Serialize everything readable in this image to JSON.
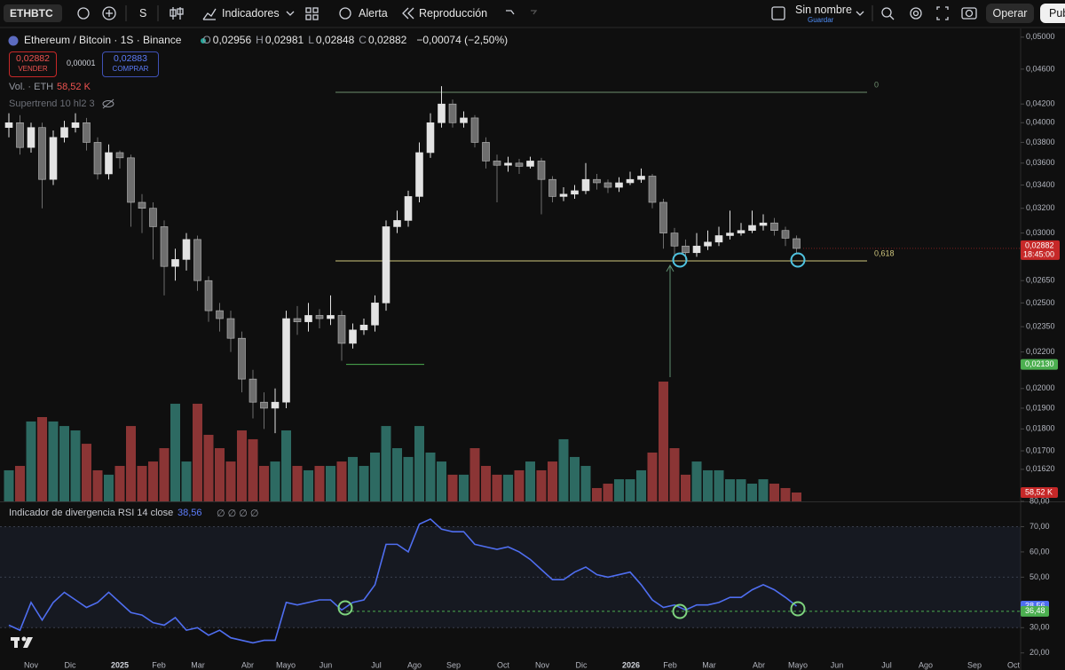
{
  "toolbar": {
    "symbol": "ETHBTC",
    "interval": "S",
    "indicators": "Indicadores",
    "alert": "Alerta",
    "replay": "Reproducción",
    "layout_name": "Sin nombre",
    "save": "Guardar",
    "trade": "Operar",
    "publish": "Pub"
  },
  "chart_data": [
    {
      "type": "candlestick",
      "title": "Ethereum / Bitcoin · 1S · Binance",
      "legend": [
        {
          "label": "O",
          "value": "0,02956"
        },
        {
          "label": "H",
          "value": "0,02981"
        },
        {
          "label": "L",
          "value": "0,02848"
        },
        {
          "label": "C",
          "value": "0,02882"
        }
      ],
      "change": "−0,00074 (−2,50%)",
      "sell": {
        "price": "0,02882",
        "label": "VENDER"
      },
      "spread": "0,00001",
      "buy": {
        "price": "0,02883",
        "label": "COMPRAR"
      },
      "indicator": "Supertrend 10 hl2 3",
      "open": [
        0.0395,
        0.04,
        0.0375,
        0.0395,
        0.0345,
        0.0385,
        0.0395,
        0.04,
        0.038,
        0.035,
        0.037,
        0.0365,
        0.0325,
        0.032,
        0.0305,
        0.0275,
        0.028,
        0.0295,
        0.0265,
        0.0245,
        0.024,
        0.0228,
        0.0205,
        0.0193,
        0.019,
        0.0193,
        0.024,
        0.0238,
        0.0242,
        0.024,
        0.0242,
        0.0225,
        0.0233,
        0.0236,
        0.025,
        0.0305,
        0.031,
        0.033,
        0.037,
        0.04,
        0.042,
        0.04,
        0.0405,
        0.038,
        0.0362,
        0.0358,
        0.036,
        0.0357,
        0.0362,
        0.0345,
        0.033,
        0.0332,
        0.0335,
        0.0345,
        0.0342,
        0.0338,
        0.0342,
        0.0345,
        0.0348,
        0.0325,
        0.03,
        0.029,
        0.0285,
        0.029,
        0.0293,
        0.0298,
        0.03,
        0.0302,
        0.0306,
        0.0308,
        0.0302,
        0.02956
      ],
      "high": [
        0.041,
        0.0408,
        0.04,
        0.04,
        0.0392,
        0.0402,
        0.041,
        0.0405,
        0.0385,
        0.0378,
        0.0372,
        0.0368,
        0.0332,
        0.0325,
        0.031,
        0.0288,
        0.03,
        0.0298,
        0.0268,
        0.025,
        0.0245,
        0.0232,
        0.021,
        0.0198,
        0.02,
        0.0245,
        0.0248,
        0.025,
        0.0246,
        0.0255,
        0.0245,
        0.0237,
        0.024,
        0.0255,
        0.031,
        0.0318,
        0.0335,
        0.038,
        0.041,
        0.044,
        0.0425,
        0.0412,
        0.0408,
        0.0385,
        0.0368,
        0.0366,
        0.0364,
        0.0366,
        0.0365,
        0.0348,
        0.0338,
        0.034,
        0.036,
        0.035,
        0.0345,
        0.0347,
        0.0352,
        0.0355,
        0.035,
        0.0328,
        0.0304,
        0.0295,
        0.03,
        0.0302,
        0.0305,
        0.0318,
        0.0308,
        0.0318,
        0.0315,
        0.0312,
        0.0305,
        0.02981
      ],
      "low": [
        0.0385,
        0.0368,
        0.037,
        0.032,
        0.034,
        0.038,
        0.039,
        0.0372,
        0.0345,
        0.0345,
        0.0355,
        0.0305,
        0.03,
        0.028,
        0.0255,
        0.0265,
        0.0272,
        0.0258,
        0.0238,
        0.0232,
        0.022,
        0.0198,
        0.0185,
        0.018,
        0.0178,
        0.019,
        0.023,
        0.0232,
        0.0234,
        0.0236,
        0.0215,
        0.0222,
        0.023,
        0.0232,
        0.0245,
        0.03,
        0.0305,
        0.0325,
        0.0365,
        0.0395,
        0.0395,
        0.0395,
        0.0375,
        0.0355,
        0.0325,
        0.0352,
        0.035,
        0.0355,
        0.0315,
        0.0325,
        0.0326,
        0.0328,
        0.0332,
        0.0336,
        0.0333,
        0.0334,
        0.034,
        0.0342,
        0.032,
        0.0288,
        0.0283,
        0.028,
        0.0282,
        0.0287,
        0.029,
        0.0295,
        0.0298,
        0.03,
        0.0302,
        0.0298,
        0.029,
        0.02848
      ],
      "close": [
        0.04,
        0.0375,
        0.0395,
        0.0345,
        0.0385,
        0.0395,
        0.04,
        0.038,
        0.035,
        0.037,
        0.0365,
        0.0325,
        0.032,
        0.0305,
        0.0275,
        0.028,
        0.0295,
        0.0265,
        0.0245,
        0.024,
        0.0228,
        0.0205,
        0.0193,
        0.019,
        0.0193,
        0.024,
        0.0238,
        0.0242,
        0.024,
        0.0242,
        0.0225,
        0.0233,
        0.0236,
        0.025,
        0.0305,
        0.031,
        0.033,
        0.037,
        0.04,
        0.042,
        0.04,
        0.0405,
        0.038,
        0.0362,
        0.0358,
        0.036,
        0.0357,
        0.0362,
        0.0345,
        0.033,
        0.0332,
        0.0335,
        0.0345,
        0.0342,
        0.0338,
        0.0342,
        0.0345,
        0.0348,
        0.0325,
        0.03,
        0.029,
        0.0285,
        0.029,
        0.0293,
        0.0298,
        0.03,
        0.0302,
        0.0306,
        0.0308,
        0.0302,
        0.0296,
        0.02882
      ],
      "up_color": "#e3e3e3",
      "down_color": "#6e6e6e",
      "ylim": [
        0.0149,
        0.0508
      ],
      "log_scale": true,
      "yticks": [
        {
          "value": 0.05,
          "label": "0,05000"
        },
        {
          "value": 0.046,
          "label": "0,04600"
        },
        {
          "value": 0.042,
          "label": "0,04200"
        },
        {
          "value": 0.04,
          "label": "0,04000"
        },
        {
          "value": 0.038,
          "label": "0,03800"
        },
        {
          "value": 0.036,
          "label": "0,03600"
        },
        {
          "value": 0.034,
          "label": "0,03400"
        },
        {
          "value": 0.032,
          "label": "0,03200"
        },
        {
          "value": 0.03,
          "label": "0,03000"
        },
        {
          "value": 0.0265,
          "label": "0,02650"
        },
        {
          "value": 0.025,
          "label": "0,02500"
        },
        {
          "value": 0.0235,
          "label": "0,02350"
        },
        {
          "value": 0.022,
          "label": "0,02200"
        },
        {
          "value": 0.02,
          "label": "0,02000"
        },
        {
          "value": 0.019,
          "label": "0,01900"
        },
        {
          "value": 0.018,
          "label": "0,01800"
        },
        {
          "value": 0.017,
          "label": "0,01700"
        },
        {
          "value": 0.0162,
          "label": "0,01620"
        }
      ],
      "last_price": {
        "value": 0.02882,
        "label": "0,02882",
        "countdown": "18:45:00",
        "color": "#c62828"
      },
      "levels": [
        {
          "value": 0.0433,
          "label": "0",
          "color": "#6f8f6f"
        },
        {
          "value": 0.0279,
          "label": "0,618",
          "color": "#cfc77e"
        }
      ],
      "support": {
        "value": 0.0213,
        "label": "0,02130",
        "color": "#4caf50"
      }
    },
    {
      "type": "bar",
      "title": "Vol. · ETH",
      "value_label": "58,52 K",
      "values": [
        205,
        234,
        527,
        556,
        527,
        497,
        468,
        380,
        205,
        176,
        234,
        497,
        234,
        263,
        351,
        644,
        263,
        644,
        439,
        351,
        263,
        468,
        410,
        234,
        263,
        468,
        234,
        205,
        234,
        234,
        263,
        293,
        234,
        322,
        497,
        351,
        293,
        497,
        322,
        263,
        176,
        176,
        351,
        234,
        176,
        176,
        205,
        263,
        205,
        263,
        410,
        293,
        234,
        88,
        117,
        146,
        146,
        205,
        322,
        790,
        351,
        176,
        263,
        205,
        205,
        146,
        146,
        117,
        146,
        117,
        88,
        58.52
      ],
      "up_color": "#2d6a62",
      "down_color": "#8b3535",
      "label_color": "#c62828"
    },
    {
      "type": "line",
      "title": "Indicador de divergencia RSI 14 close",
      "value_label": "38,56",
      "inputs": "∅ ∅ ∅ ∅",
      "color": "#4f6ef0",
      "values": [
        31,
        29,
        40,
        33,
        40,
        44,
        41,
        38,
        40,
        44,
        40,
        36,
        35,
        32,
        31,
        34,
        29,
        30,
        27,
        29,
        26,
        25,
        24,
        25,
        25,
        40,
        39,
        40,
        41,
        41,
        37,
        40,
        41,
        47,
        63,
        63,
        60,
        71,
        73,
        69,
        68,
        68,
        63,
        62,
        61,
        62,
        60,
        57,
        53,
        49,
        49,
        52,
        54,
        51,
        50,
        51,
        52,
        47,
        41,
        38,
        39,
        37,
        39,
        39,
        40,
        42,
        42,
        45,
        47,
        45,
        42,
        38.56
      ],
      "ylim": [
        15,
        80
      ],
      "yticks": [
        {
          "value": 80,
          "label": "80,00"
        },
        {
          "value": 70,
          "label": "70,00"
        },
        {
          "value": 60,
          "label": "60,00"
        },
        {
          "value": 50,
          "label": "50,00"
        },
        {
          "value": 30,
          "label": "30,00"
        },
        {
          "value": 20,
          "label": "20,00"
        }
      ],
      "band": [
        30,
        70
      ],
      "midline": 50,
      "level": {
        "value": 36.48,
        "label": "36,48",
        "color": "#4caf50"
      }
    }
  ],
  "xticks": [
    "Nov",
    "Dic",
    "2025",
    "Feb",
    "Mar",
    "Abr",
    "Mayo",
    "Jun",
    "Jul",
    "Ago",
    "Sep",
    "Oct",
    "Nov",
    "Dic",
    "2026",
    "Feb",
    "Mar",
    "Abr",
    "Mayo",
    "Jun",
    "Jul",
    "Ago",
    "Sep",
    "Oct"
  ]
}
